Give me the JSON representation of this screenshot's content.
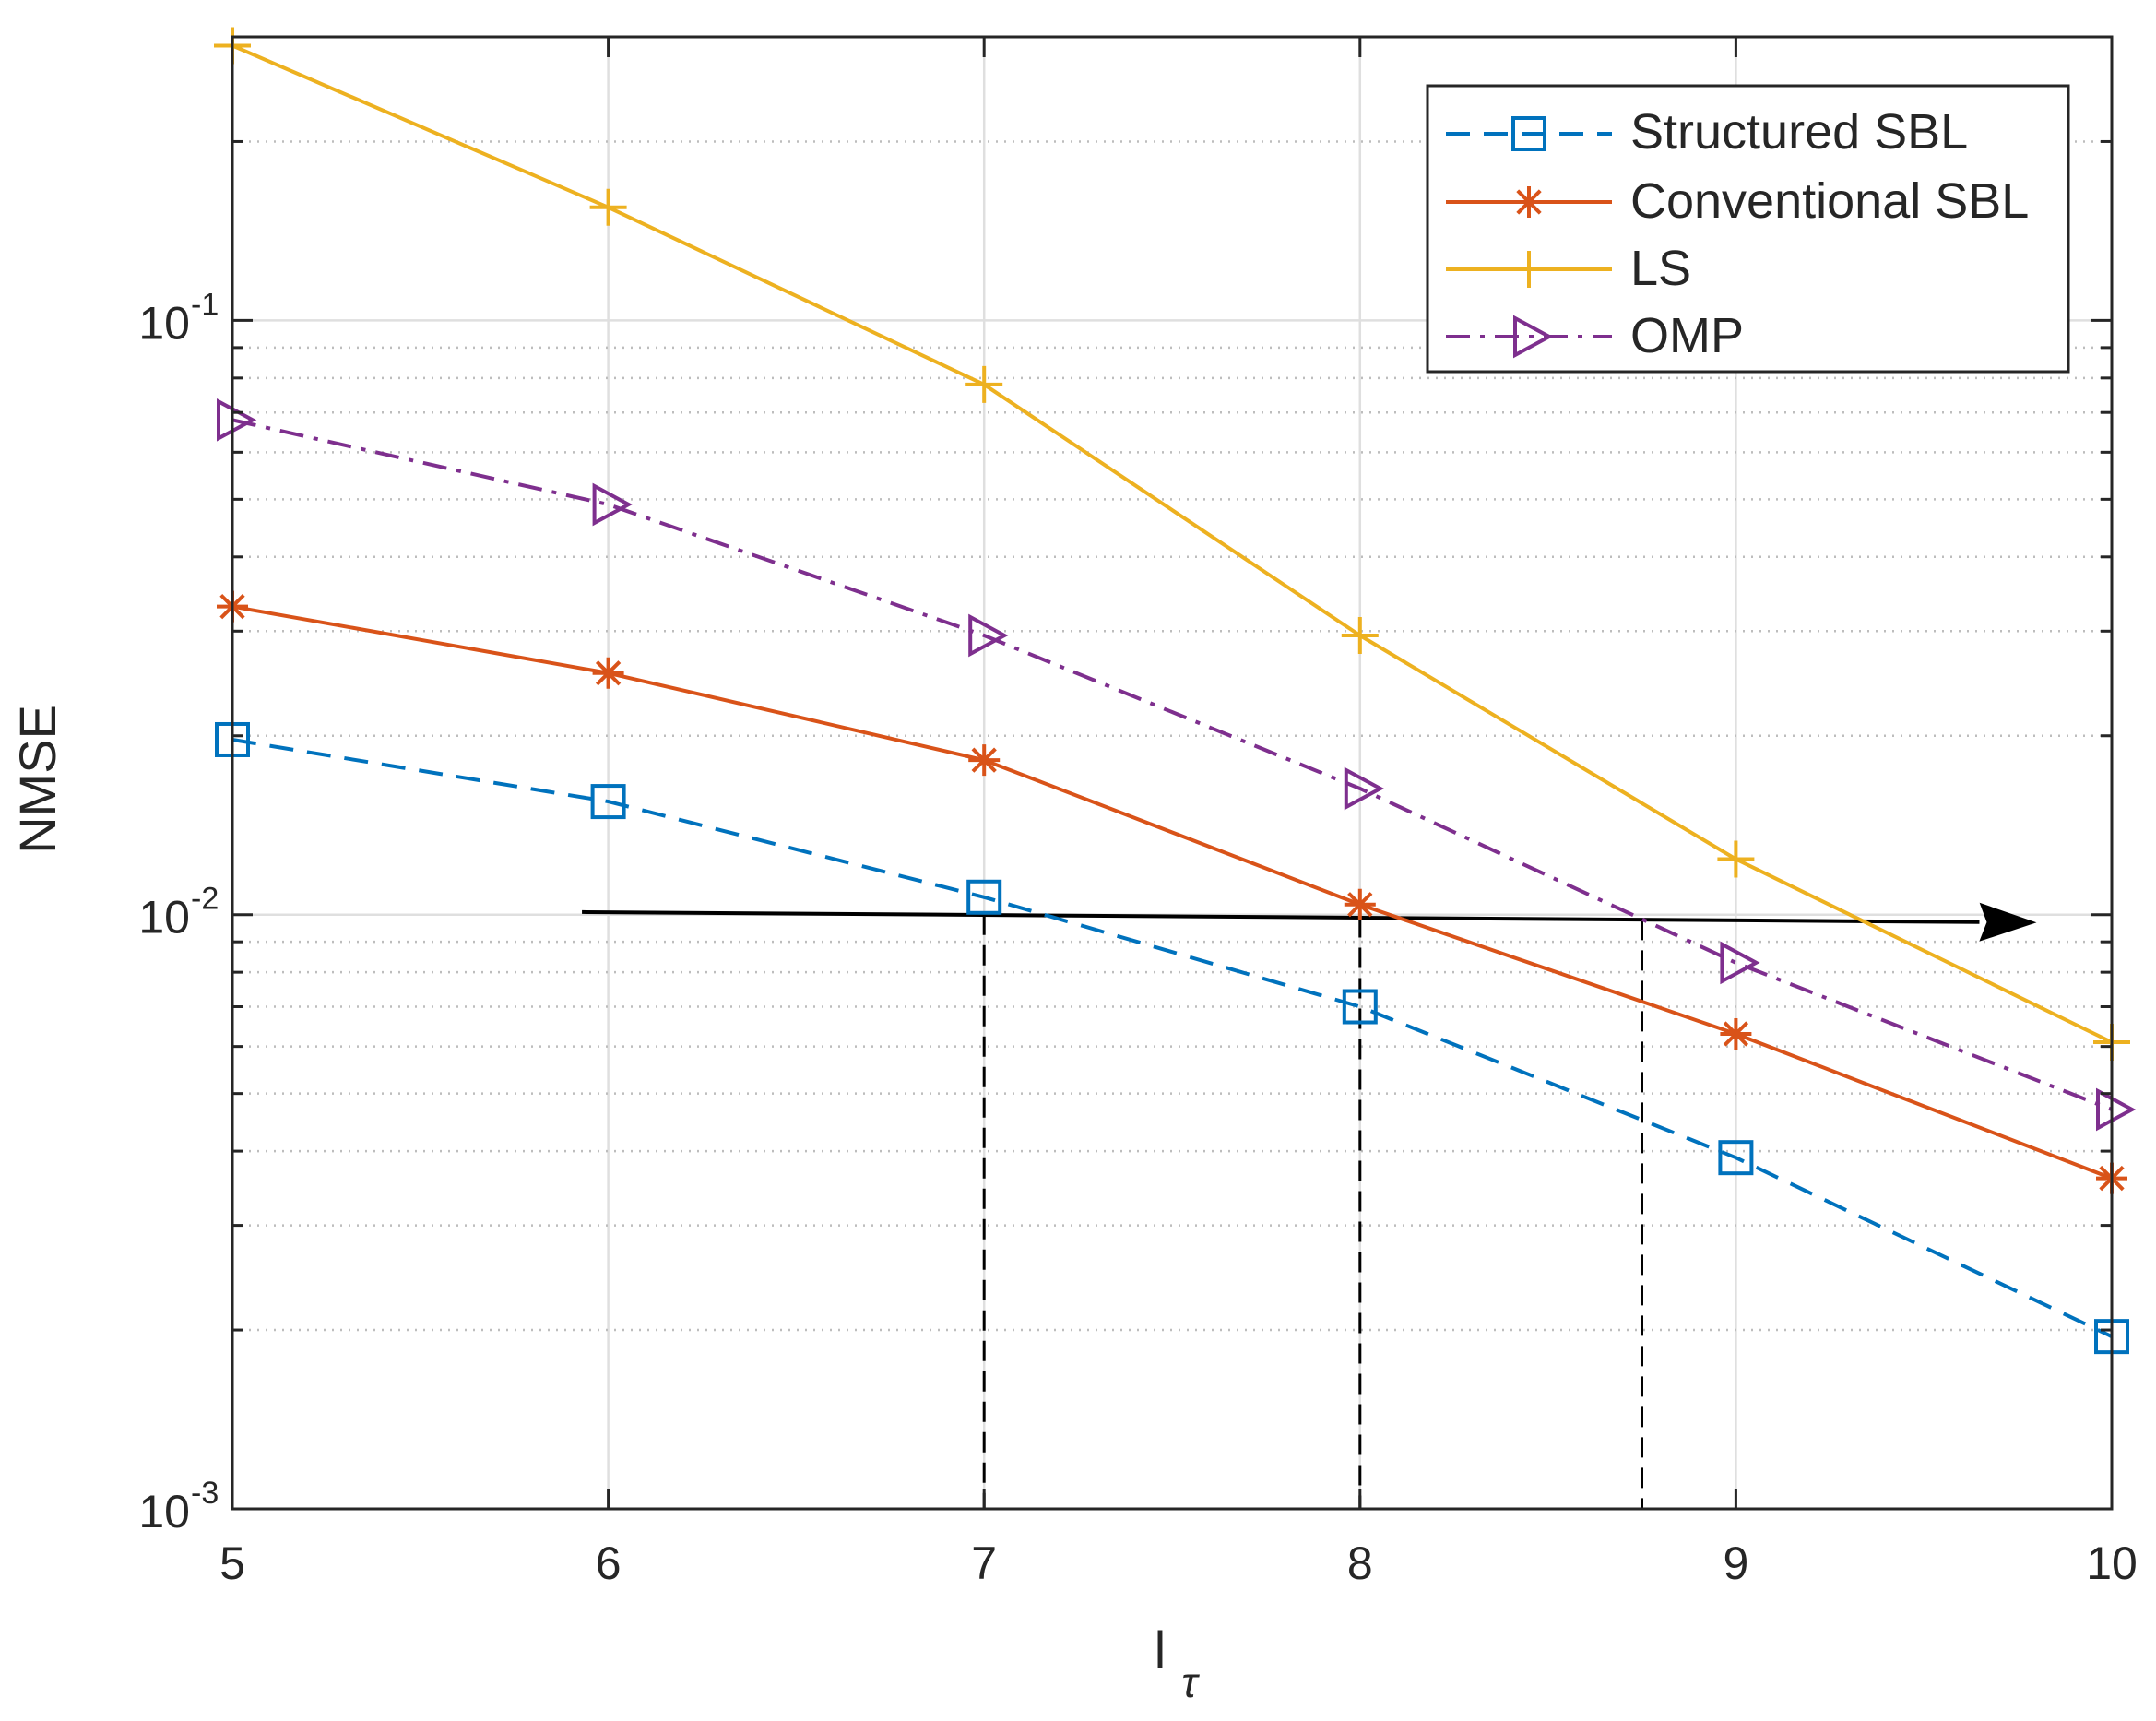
{
  "chart_data": {
    "type": "line",
    "title": "",
    "xlabel_main": "l",
    "xlabel_sub": "τ",
    "ylabel": "NMSE",
    "y_scale": "log",
    "x": [
      5,
      6,
      7,
      8,
      9,
      10
    ],
    "xlim": [
      5,
      10
    ],
    "ylim": [
      0.001,
      0.3
    ],
    "x_ticks": [
      "5",
      "6",
      "7",
      "8",
      "9",
      "10"
    ],
    "y_ticks": [
      {
        "value": 0.1,
        "base": "10",
        "exp": "-1"
      },
      {
        "value": 0.01,
        "base": "10",
        "exp": "-2"
      },
      {
        "value": 0.001,
        "base": "10",
        "exp": "-3"
      }
    ],
    "grid": true,
    "legend_position": "top-right",
    "series": [
      {
        "name": "Structured SBL",
        "values": [
          0.0197,
          0.0155,
          0.0107,
          0.007,
          0.0039,
          0.00195
        ],
        "color": "#0072BD",
        "dash": "dashed",
        "marker": "square"
      },
      {
        "name": "Conventional SBL",
        "values": [
          0.033,
          0.0255,
          0.0182,
          0.0104,
          0.0063,
          0.0036
        ],
        "color": "#D95319",
        "dash": "solid",
        "marker": "asterisk"
      },
      {
        "name": "LS",
        "values": [
          0.29,
          0.155,
          0.078,
          0.0295,
          0.0124,
          0.0061
        ],
        "color": "#EDB120",
        "dash": "solid",
        "marker": "plus"
      },
      {
        "name": "OMP",
        "values": [
          0.068,
          0.049,
          0.0295,
          0.0163,
          0.0083,
          0.0047
        ],
        "color": "#7E2F8E",
        "dash": "dashdot",
        "marker": "triangle-right"
      }
    ],
    "annotations": {
      "arrow": {
        "x_start": 5.93,
        "y_start": 0.0101,
        "x_end": 9.8,
        "y_end": 0.0097,
        "color": "#000000"
      },
      "drop_lines": [
        {
          "x": 7.0,
          "y_top": 0.01
        },
        {
          "x": 8.0,
          "y_top": 0.0099
        },
        {
          "x": 8.75,
          "y_top": 0.0098
        }
      ]
    }
  }
}
